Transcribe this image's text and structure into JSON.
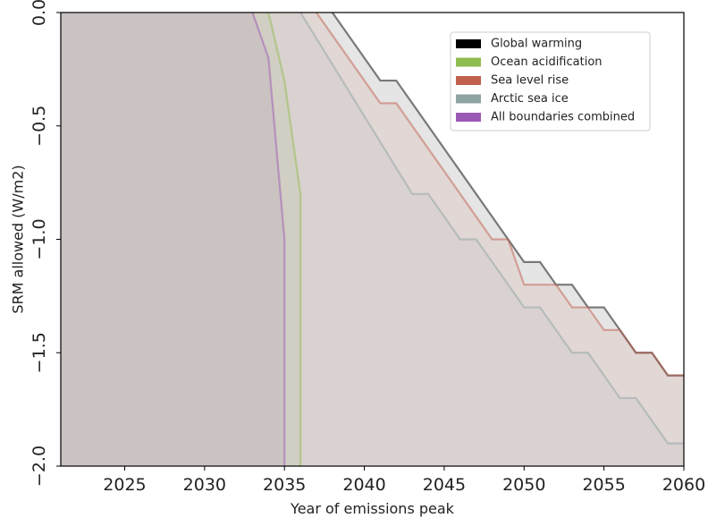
{
  "chart_data": {
    "type": "area",
    "xlabel": "Year of emissions peak",
    "ylabel": "SRM allowed (W/m2)",
    "xlim": [
      2021,
      2060
    ],
    "ylim": [
      -2.0,
      0.0
    ],
    "xticks": [
      2025,
      2030,
      2035,
      2040,
      2045,
      2050,
      2055,
      2060
    ],
    "yticks": [
      0.0,
      -0.5,
      -1.0,
      -1.5,
      -2.0
    ],
    "xtick_labels": [
      "2025",
      "2030",
      "2035",
      "2040",
      "2045",
      "2050",
      "2055",
      "2060"
    ],
    "ytick_labels": [
      "0.0",
      "−0.5",
      "−1.0",
      "−1.5",
      "−2.0"
    ],
    "legend_position": "top-right",
    "series": [
      {
        "name": "Global warming",
        "color": "#000000",
        "x": [
          2038,
          2041,
          2042,
          2049,
          2050,
          2051,
          2052,
          2053,
          2054,
          2055,
          2056,
          2057,
          2058,
          2059,
          2060
        ],
        "y": [
          0.0,
          -0.3,
          -0.3,
          -1.0,
          -1.1,
          -1.1,
          -1.2,
          -1.2,
          -1.3,
          -1.3,
          -1.4,
          -1.5,
          -1.5,
          -1.6,
          -1.6
        ]
      },
      {
        "name": "Ocean acidification",
        "color": "#8fbc4f",
        "x": [
          2034,
          2035,
          2036,
          2036
        ],
        "y": [
          0.0,
          -0.3,
          -0.8,
          -2.0
        ]
      },
      {
        "name": "Sea level rise",
        "color": "#c0604d",
        "x": [
          2037,
          2041,
          2042,
          2048,
          2049,
          2050,
          2051,
          2052,
          2053,
          2054,
          2055,
          2056,
          2057,
          2058,
          2059,
          2060
        ],
        "y": [
          0.0,
          -0.4,
          -0.4,
          -1.0,
          -1.0,
          -1.2,
          -1.2,
          -1.2,
          -1.3,
          -1.3,
          -1.4,
          -1.4,
          -1.5,
          -1.5,
          -1.6,
          -1.6
        ]
      },
      {
        "name": "Arctic sea ice",
        "color": "#8fa3a3",
        "x": [
          2036,
          2043,
          2044,
          2046,
          2047,
          2050,
          2051,
          2053,
          2054,
          2056,
          2057,
          2059,
          2060
        ],
        "y": [
          0.0,
          -0.8,
          -0.8,
          -1.0,
          -1.0,
          -1.3,
          -1.3,
          -1.5,
          -1.5,
          -1.7,
          -1.7,
          -1.9,
          -1.9
        ]
      },
      {
        "name": "All boundaries combined",
        "color": "#9b59b6",
        "x": [
          2033,
          2034,
          2035,
          2035
        ],
        "y": [
          0.0,
          -0.2,
          -1.0,
          -2.0
        ]
      }
    ]
  }
}
